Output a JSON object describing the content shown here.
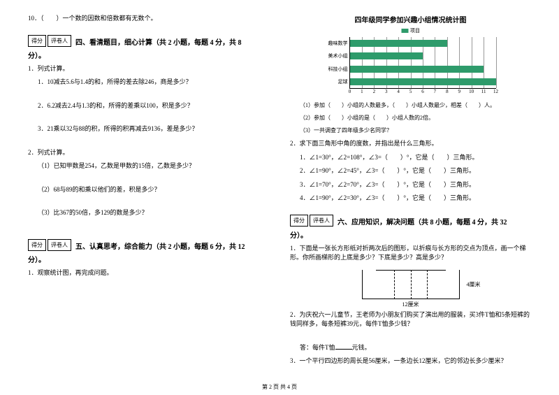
{
  "left": {
    "q10": "10．（　　）一个数的因数和倍数都有无数个。",
    "score_label1": "得分",
    "score_label2": "评卷人",
    "sec4_title": "四、看清题目，细心计算（共 2 小题，每题 4 分，共 8",
    "sec4_cont": "分）。",
    "s4_1": "1．列式计算。",
    "s4_1_1": "1．10减去5.6与1.4的和，所得的差去除246，商是多少？",
    "s4_1_2": "2．6.2减去2.4与1.3的和，所得的差乘以100，积是多少？",
    "s4_1_3": "3．21乘以32与88的积，所得的积再减去9136，差是多少？",
    "s4_2": "2．列式计算。",
    "s4_2_1": "（1）已知甲数是254，乙数是甲数的15倍，乙数是多少？",
    "s4_2_2": "（2）68与89的和乘以他们的差，积是多少？",
    "s4_2_3": "（3）比367的50倍，多129的数是多少？",
    "sec5_title": "五、认真思考，综合能力（共 2 小题，每题 6 分，共 12",
    "sec5_cont": "分）。",
    "s5_1": "1．观察统计图，再完成问题。"
  },
  "right": {
    "chart_title": "四年级同学参加兴趣小组情况统计图",
    "legend": "项目",
    "bar_color": "#2e9b6b",
    "grid_color": "#999999",
    "xmax": 12,
    "categories": [
      "趣味数学",
      "美术小组",
      "科技小组",
      "足球"
    ],
    "values": [
      8,
      6,
      11,
      12
    ],
    "xticks": [
      0,
      1,
      2,
      3,
      4,
      5,
      6,
      7,
      8,
      9,
      10,
      11,
      12
    ],
    "q1_1": "（1）参加（　　）小组的人数最多，（　　）小组人数最少，相差（　　）人。",
    "q1_2": "（2）参加（　　）小组的是（　　）小组人数的2倍。",
    "q1_3": "（3）一共调查了四年级多少名同学？",
    "q2": "2．求下面三角形中角的度数，并指出是什么三角形。",
    "q2_1": "1．∠1=30°，∠2=108°，∠3=（　　）°，它是（　　）三角形。",
    "q2_2": "2．∠1=90°，∠2=45°，∠3=（　　）°，它是（　　）三角形。",
    "q2_3": "3．∠1=70°，∠2=70°，∠3=（　　）°，它是（　　）三角形。",
    "q2_4": "4．∠1=90°，∠2=30°，∠3=（　　）°，它是（　　）三角形。",
    "score_label1": "得分",
    "score_label2": "评卷人",
    "sec6_title": "六、应用知识，解决问题（共 8 小题，每题 4 分，共 32",
    "sec6_cont": "分）。",
    "s6_1": "1．下面是一张长方形纸对折两次后的图形，以折痕与长方形的交点为顶点，画一个梯形。你所画梯形的上底是多少？下底是多少？高是多少？",
    "trap_r": "4厘米",
    "trap_b": "12厘米",
    "s6_2": "2．为庆祝六一儿童节，王老师为小朋友们购买了演出用的服装，买3件T恤和5条短裤的钱同样多，每条短裤39元，每件T恤多少钱？",
    "s6_2_ans_a": "答：每件T恤",
    "s6_2_ans_b": "元钱。",
    "s6_3": "3．一个平行四边形的周长是56厘米，一条边长12厘米，它的邻边长多少厘米？"
  },
  "footer": "第 2 页 共 4 页"
}
